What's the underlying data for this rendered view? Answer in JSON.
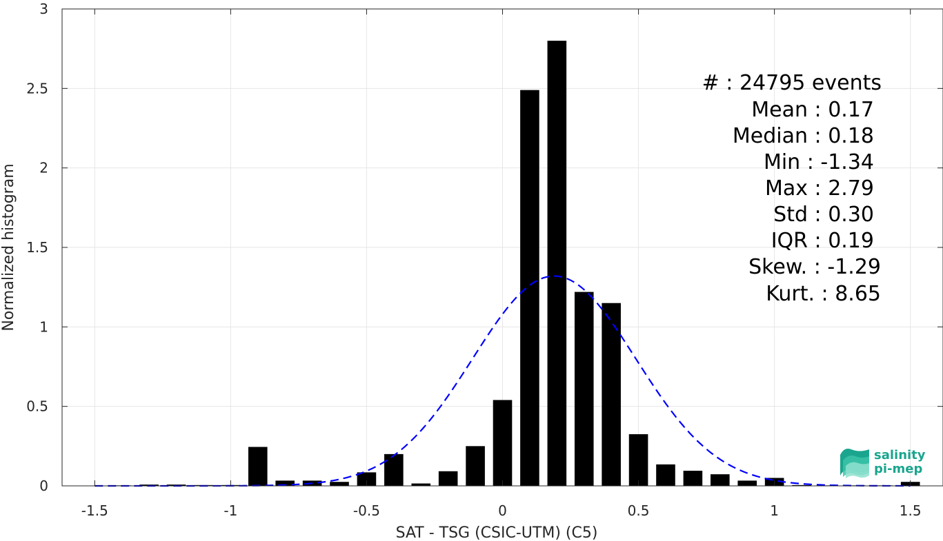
{
  "chart_data": {
    "type": "bar",
    "title": "",
    "xlabel": "SAT - TSG (CSIC-UTM) (C5)",
    "ylabel": "Normalized histogram",
    "xlim": [
      -1.62,
      1.62
    ],
    "ylim": [
      0,
      3
    ],
    "xticks": [
      -1.5,
      -1,
      -0.5,
      0,
      0.5,
      1,
      1.5
    ],
    "xtick_labels": [
      "-1.5",
      "-1",
      "-0.5",
      "0",
      "0.5",
      "1",
      "1.5"
    ],
    "yticks": [
      0,
      0.5,
      1,
      1.5,
      2,
      2.5,
      3
    ],
    "ytick_labels": [
      "0",
      "0.5",
      "1",
      "1.5",
      "2",
      "2.5",
      "3"
    ],
    "grid": true,
    "bar_width": 0.07,
    "bar_color": "#000000",
    "bars": [
      {
        "x": -1.5,
        "y": 0.0
      },
      {
        "x": -1.4,
        "y": 0.003
      },
      {
        "x": -1.3,
        "y": 0.008
      },
      {
        "x": -1.2,
        "y": 0.008
      },
      {
        "x": -1.1,
        "y": 0.005
      },
      {
        "x": -1.0,
        "y": 0.005
      },
      {
        "x": -0.9,
        "y": 0.245
      },
      {
        "x": -0.8,
        "y": 0.033
      },
      {
        "x": -0.7,
        "y": 0.033
      },
      {
        "x": -0.6,
        "y": 0.025
      },
      {
        "x": -0.5,
        "y": 0.085
      },
      {
        "x": -0.4,
        "y": 0.2
      },
      {
        "x": -0.3,
        "y": 0.015
      },
      {
        "x": -0.2,
        "y": 0.092
      },
      {
        "x": -0.1,
        "y": 0.25
      },
      {
        "x": 0.0,
        "y": 0.54
      },
      {
        "x": 0.1,
        "y": 2.49
      },
      {
        "x": 0.2,
        "y": 2.8
      },
      {
        "x": 0.3,
        "y": 1.22
      },
      {
        "x": 0.4,
        "y": 1.15
      },
      {
        "x": 0.5,
        "y": 0.325
      },
      {
        "x": 0.6,
        "y": 0.135
      },
      {
        "x": 0.7,
        "y": 0.095
      },
      {
        "x": 0.8,
        "y": 0.073
      },
      {
        "x": 0.9,
        "y": 0.033
      },
      {
        "x": 1.0,
        "y": 0.05
      },
      {
        "x": 1.1,
        "y": 0.005
      },
      {
        "x": 1.2,
        "y": 0.003
      },
      {
        "x": 1.3,
        "y": 0.003
      },
      {
        "x": 1.4,
        "y": 0.003
      },
      {
        "x": 1.5,
        "y": 0.025
      }
    ],
    "fit_curve": {
      "type": "gaussian",
      "mean": 0.19,
      "std": 0.3,
      "peak": 1.32,
      "color": "#0000ff",
      "style": "dashed",
      "x_range": [
        -1.5,
        1.5
      ]
    },
    "annotations": [
      "#  : 24795 events",
      "Mean : 0.17",
      "Median : 0.18",
      "Min : -1.34",
      "Max : 2.79",
      "Std : 0.30",
      "IQR : 0.19",
      "Skew. : -1.29",
      "Kurt. : 8.65"
    ]
  },
  "logo": {
    "line1": "salinity",
    "line2": "pi-mep",
    "color": "#1aa58e"
  }
}
